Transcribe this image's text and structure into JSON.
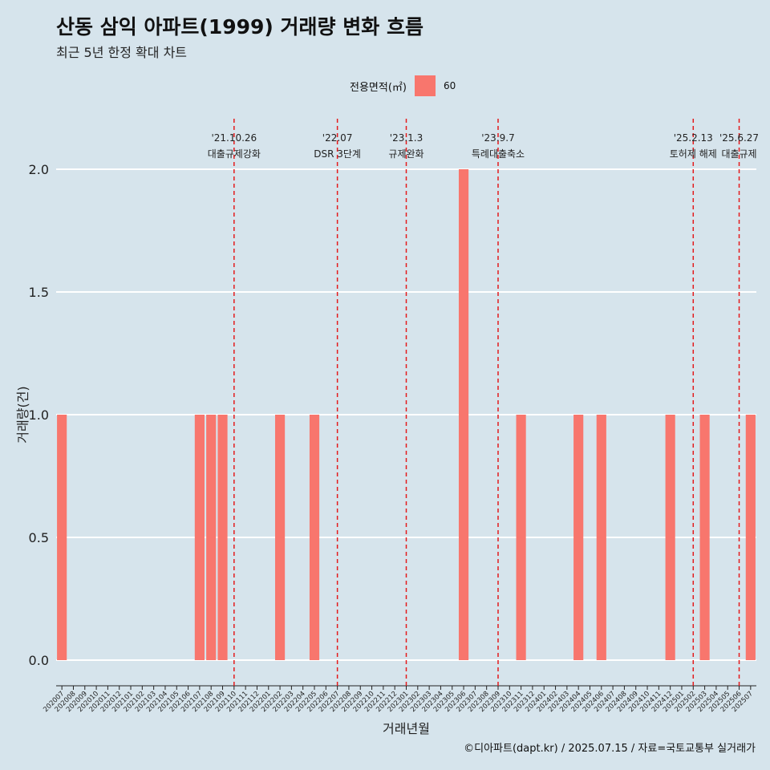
{
  "title": "산동 삼익 아파트(1999) 거래량 변화 흐름",
  "subtitle": "최근 5년 한정 확대 차트",
  "legend": {
    "title": "전용면적(㎡)",
    "items": [
      {
        "label": "60",
        "color": "#f8766d"
      }
    ]
  },
  "caption": "©디아파트(dapt.kr) / 2025.07.15 / 자료=국토교통부 실거래가",
  "colors": {
    "background": "#d6e4ec",
    "bar": "#f8766d",
    "event_line": "#e41a1c",
    "grid": "#ffffff"
  },
  "chart_data": {
    "type": "bar",
    "xlabel": "거래년월",
    "ylabel": "거래량(건)",
    "ylim": [
      0,
      2
    ],
    "yticks": [
      0.0,
      0.5,
      1.0,
      1.5,
      2.0
    ],
    "ytick_labels": [
      "0.0",
      "0.5",
      "1.0",
      "1.5",
      "2.0"
    ],
    "grid": true,
    "legend_position": "top",
    "categories": [
      "202007",
      "202008",
      "202009",
      "202010",
      "202011",
      "202012",
      "202101",
      "202102",
      "202103",
      "202104",
      "202105",
      "202106",
      "202107",
      "202108",
      "202109",
      "202110",
      "202111",
      "202112",
      "202201",
      "202202",
      "202203",
      "202204",
      "202205",
      "202206",
      "202207",
      "202208",
      "202209",
      "202210",
      "202211",
      "202212",
      "202301",
      "202302",
      "202303",
      "202304",
      "202305",
      "202306",
      "202307",
      "202308",
      "202309",
      "202310",
      "202311",
      "202312",
      "202401",
      "202402",
      "202403",
      "202404",
      "202405",
      "202406",
      "202407",
      "202408",
      "202409",
      "202410",
      "202411",
      "202412",
      "202501",
      "202502",
      "202503",
      "202504",
      "202505",
      "202506",
      "202507"
    ],
    "series": [
      {
        "name": "60",
        "color": "#f8766d",
        "values": [
          1,
          0,
          0,
          0,
          0,
          0,
          0,
          0,
          0,
          0,
          0,
          0,
          1,
          1,
          1,
          0,
          0,
          0,
          0,
          1,
          0,
          0,
          1,
          0,
          0,
          0,
          0,
          0,
          0,
          0,
          0,
          0,
          0,
          0,
          0,
          2,
          0,
          0,
          0,
          0,
          1,
          0,
          0,
          0,
          0,
          1,
          0,
          1,
          0,
          0,
          0,
          0,
          0,
          1,
          0,
          0,
          1,
          0,
          0,
          0,
          1
        ]
      }
    ],
    "events": [
      {
        "date": "'21.10.26",
        "label": "대출규제강화",
        "category": "202110"
      },
      {
        "date": "'22.07",
        "label": "DSR 3단계",
        "category": "202207"
      },
      {
        "date": "'23.1.3",
        "label": "규제완화",
        "category": "202301"
      },
      {
        "date": "'23.9.7",
        "label": "특례대출축소",
        "category": "202309"
      },
      {
        "date": "'25.2.13",
        "label": "토허제 해제",
        "category": "202502"
      },
      {
        "date": "'25.6.27",
        "label": "대출규제",
        "category": "202506"
      }
    ]
  }
}
